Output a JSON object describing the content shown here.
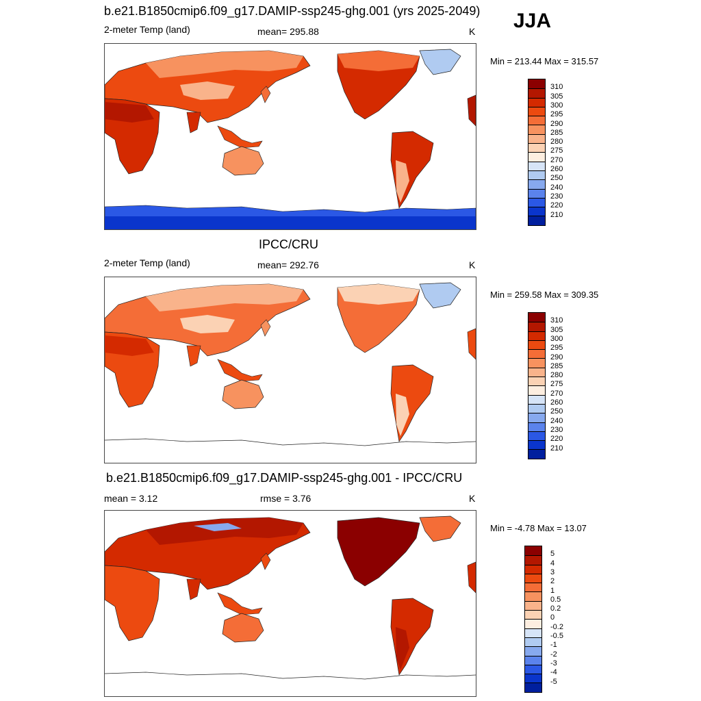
{
  "season": "JJA",
  "panels": [
    {
      "title": "b.e21.B1850cmip6.f09_g17.DAMIP-ssp245-ghg.001 (yrs 2025-2049)",
      "left_label": "2-meter Temp (land)",
      "center_label": "mean= 295.88",
      "units": "K",
      "minmax": "Min = 213.44 Max = 315.57"
    },
    {
      "title": "IPCC/CRU",
      "left_label": "2-meter Temp (land)",
      "center_label": "mean= 292.76",
      "units": "K",
      "minmax": "Min = 259.58 Max = 309.35"
    },
    {
      "title": "b.e21.B1850cmip6.f09_g17.DAMIP-ssp245-ghg.001 - IPCC/CRU",
      "left_label": "mean =   3.12",
      "center_label": "rmse =   3.76",
      "units": "K",
      "minmax": "Min =  -4.78 Max =  13.07"
    }
  ],
  "chart_data": [
    {
      "type": "heatmap",
      "title": "b.e21.B1850cmip6.f09_g17.DAMIP-ssp245-ghg.001 (yrs 2025-2049)",
      "variable": "2-meter Temp (land)",
      "units": "K",
      "mean": 295.88,
      "min": 213.44,
      "max": 315.57,
      "colorbar_levels": [
        "310",
        "305",
        "300",
        "295",
        "290",
        "285",
        "280",
        "275",
        "270",
        "260",
        "250",
        "240",
        "230",
        "220",
        "210"
      ],
      "colorbar_colors": [
        "#8b0000",
        "#b31700",
        "#d42a00",
        "#ec4a10",
        "#f46d37",
        "#f7925f",
        "#f9b38b",
        "#fbd2b4",
        "#fdeee0",
        "#d6e4f7",
        "#b0cbf1",
        "#87a9ee",
        "#5b83ec",
        "#2b58e5",
        "#0a35cc",
        "#001f9e"
      ]
    },
    {
      "type": "heatmap",
      "title": "IPCC/CRU",
      "variable": "2-meter Temp (land)",
      "units": "K",
      "mean": 292.76,
      "min": 259.58,
      "max": 309.35,
      "colorbar_levels": [
        "310",
        "305",
        "300",
        "295",
        "290",
        "285",
        "280",
        "275",
        "270",
        "260",
        "250",
        "240",
        "230",
        "220",
        "210"
      ],
      "colorbar_colors": [
        "#8b0000",
        "#b31700",
        "#d42a00",
        "#ec4a10",
        "#f46d37",
        "#f7925f",
        "#f9b38b",
        "#fbd2b4",
        "#fdeee0",
        "#d6e4f7",
        "#b0cbf1",
        "#87a9ee",
        "#5b83ec",
        "#2b58e5",
        "#0a35cc",
        "#001f9e"
      ]
    },
    {
      "type": "heatmap",
      "title": "b.e21.B1850cmip6.f09_g17.DAMIP-ssp245-ghg.001 - IPCC/CRU",
      "units": "K",
      "mean": 3.12,
      "rmse": 3.76,
      "min": -4.78,
      "max": 13.07,
      "colorbar_levels": [
        "5",
        "4",
        "3",
        "2",
        "1",
        "0.5",
        "0.2",
        "0",
        "-0.2",
        "-0.5",
        "-1",
        "-2",
        "-3",
        "-4",
        "-5"
      ],
      "colorbar_colors": [
        "#8b0000",
        "#b31700",
        "#d42a00",
        "#ec4a10",
        "#f46d37",
        "#f7925f",
        "#f9b38b",
        "#fbd2b4",
        "#fdeee0",
        "#d6e4f7",
        "#b0cbf1",
        "#87a9ee",
        "#5b83ec",
        "#2b58e5",
        "#0a35cc",
        "#001f9e"
      ]
    }
  ]
}
